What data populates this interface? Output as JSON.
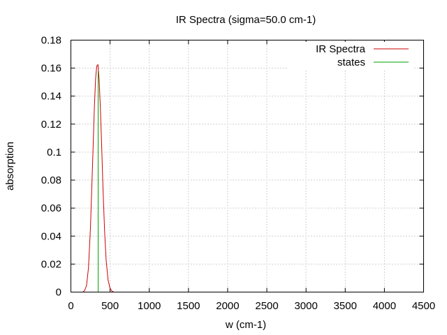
{
  "chart_data": {
    "type": "line",
    "title": "IR Spectra (sigma=50.0 cm-1)",
    "xlabel": "w (cm-1)",
    "ylabel": "absorption",
    "xlim": [
      0,
      4500
    ],
    "ylim": [
      0,
      0.18
    ],
    "x_ticks": [
      0,
      500,
      1000,
      1500,
      2000,
      2500,
      3000,
      3500,
      4000,
      4500
    ],
    "x_tick_labels": [
      "0",
      "500",
      "1000",
      "1500",
      "2000",
      "2500",
      "3000",
      "3500",
      "4000",
      "4500"
    ],
    "y_ticks": [
      0,
      0.02,
      0.04,
      0.06,
      0.08,
      0.1,
      0.12,
      0.14,
      0.16,
      0.18
    ],
    "y_tick_labels": [
      "0",
      "0.02",
      "0.04",
      "0.06",
      "0.08",
      "0.1",
      "0.12",
      "0.14",
      "0.16",
      "0.18"
    ],
    "grid": true,
    "legend_position": "top-right",
    "series": [
      {
        "name": "IR Spectra",
        "color": "#cc0000",
        "kind": "line",
        "x": [
          150,
          175,
          200,
          225,
          250,
          275,
          300,
          315,
          330,
          345,
          360,
          375,
          390,
          410,
          430,
          450,
          475,
          500,
          525,
          550
        ],
        "y": [
          0.0,
          0.001,
          0.0048,
          0.0177,
          0.0467,
          0.0889,
          0.1325,
          0.1522,
          0.1615,
          0.1625,
          0.1522,
          0.133,
          0.1089,
          0.0735,
          0.0434,
          0.0225,
          0.0084,
          0.0026,
          0.0006,
          0.0
        ]
      },
      {
        "name": "states",
        "color": "#00a000",
        "kind": "impulse",
        "x": [
          348
        ],
        "y": [
          0.158
        ]
      }
    ]
  }
}
